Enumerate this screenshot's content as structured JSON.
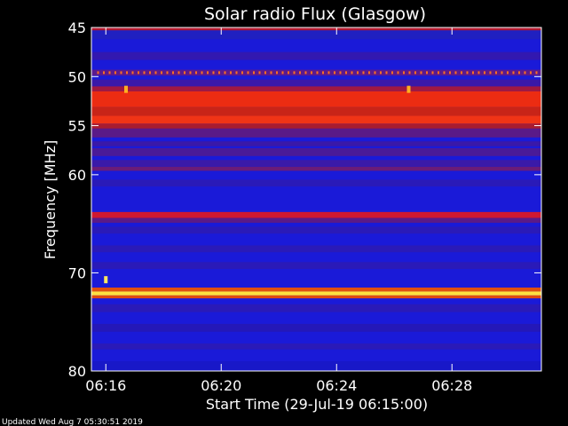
{
  "chart_data": {
    "type": "heatmap",
    "title": "Solar radio Flux (Glasgow)",
    "xlabel": "Start Time (29-Jul-19 06:15:00)",
    "ylabel": "Frequency [MHz]",
    "xlim_minutes": [
      15.5,
      31.1
    ],
    "ylim": [
      45,
      80
    ],
    "x_ticks": [
      {
        "minute": 16,
        "label": "06:16"
      },
      {
        "minute": 20,
        "label": "06:20"
      },
      {
        "minute": 24,
        "label": "06:24"
      },
      {
        "minute": 28,
        "label": "06:28"
      }
    ],
    "y_ticks": [
      {
        "value": 45,
        "label": "45"
      },
      {
        "value": 50,
        "label": "50"
      },
      {
        "value": 55,
        "label": "55"
      },
      {
        "value": 60,
        "label": "60"
      },
      {
        "value": 70,
        "label": "70"
      },
      {
        "value": 80,
        "label": "80"
      }
    ],
    "background_color": "#1a1ad8",
    "bands": [
      {
        "from": 45.0,
        "to": 45.3,
        "color": "#b01830"
      },
      {
        "from": 45.3,
        "to": 46.2,
        "color": "#2020c0"
      },
      {
        "from": 47.5,
        "to": 48.3,
        "color": "#3218b0"
      },
      {
        "from": 49.3,
        "to": 49.9,
        "color": "#5a1a90"
      },
      {
        "from": 50.3,
        "to": 51.0,
        "color": "#3a18a8"
      },
      {
        "from": 51.0,
        "to": 51.5,
        "color": "#a01840"
      },
      {
        "from": 51.5,
        "to": 53.1,
        "color": "#ec2c12"
      },
      {
        "from": 53.1,
        "to": 54.0,
        "color": "#c82418"
      },
      {
        "from": 54.0,
        "to": 54.8,
        "color": "#f03416"
      },
      {
        "from": 54.8,
        "to": 55.3,
        "color": "#a81c30"
      },
      {
        "from": 55.3,
        "to": 56.2,
        "color": "#5a1a88"
      },
      {
        "from": 56.6,
        "to": 57.1,
        "color": "#3a18a8"
      },
      {
        "from": 57.3,
        "to": 58.1,
        "color": "#4a1a98"
      },
      {
        "from": 58.5,
        "to": 59.2,
        "color": "#3a1aa8"
      },
      {
        "from": 59.2,
        "to": 59.6,
        "color": "#6a1c78"
      },
      {
        "from": 60.5,
        "to": 61.2,
        "color": "#2a1ab8"
      },
      {
        "from": 63.8,
        "to": 64.4,
        "color": "#d01830"
      },
      {
        "from": 64.4,
        "to": 64.9,
        "color": "#5a1a88"
      },
      {
        "from": 65.3,
        "to": 66.0,
        "color": "#2a1ab8"
      },
      {
        "from": 67.2,
        "to": 67.9,
        "color": "#2a1ab8"
      },
      {
        "from": 68.9,
        "to": 69.6,
        "color": "#2a1ab8"
      },
      {
        "from": 71.5,
        "to": 71.9,
        "color": "#e05010"
      },
      {
        "from": 71.9,
        "to": 72.3,
        "color": "#ffe040"
      },
      {
        "from": 72.3,
        "to": 72.6,
        "color": "#e04a10"
      },
      {
        "from": 73.2,
        "to": 74.0,
        "color": "#2a1ab8"
      },
      {
        "from": 75.2,
        "to": 76.0,
        "color": "#2418b8"
      },
      {
        "from": 77.2,
        "to": 77.8,
        "color": "#2a1ab8"
      },
      {
        "from": 79.0,
        "to": 80.0,
        "color": "#1818c8"
      }
    ],
    "bursts": [
      {
        "minute": 16.0,
        "freq": 70.7,
        "color": "#ffe860"
      },
      {
        "minute": 16.7,
        "freq": 51.3,
        "color": "#ffb020"
      },
      {
        "minute": 26.5,
        "freq": 51.3,
        "color": "#ffb020"
      }
    ],
    "dot_row": {
      "freq": 49.6,
      "from_minute": 15.7,
      "to_minute": 31.0,
      "step_minute": 0.2,
      "color": "#ff7020"
    }
  },
  "footer": {
    "updated": "Updated Wed Aug  7 05:30:51 2019"
  }
}
